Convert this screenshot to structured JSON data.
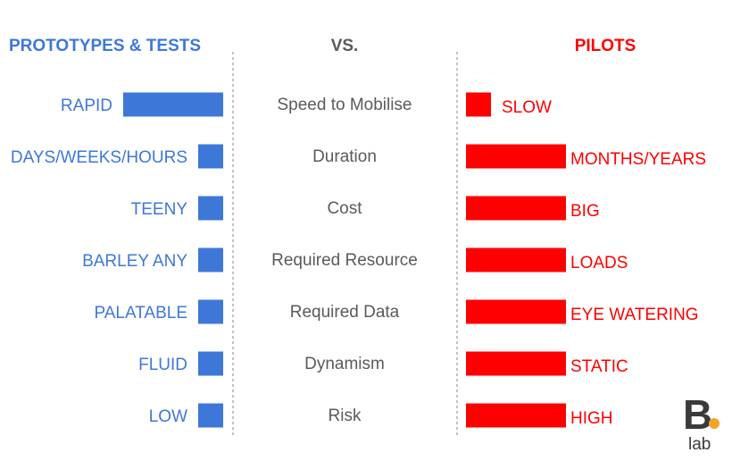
{
  "colors": {
    "left": "#3d78d8",
    "right": "#ff0000",
    "middle_text": "#5a5a5a",
    "divider": "#9a9a9a",
    "logo_b": "#3a3a3a",
    "logo_dot": "#f4a228"
  },
  "headers": {
    "left": "PROTOTYPES & TESTS",
    "middle": "VS.",
    "right": "PILOTS"
  },
  "chart_data": {
    "type": "bar",
    "categories": [
      "Speed to Mobilise",
      "Duration",
      "Cost",
      "Required Resource",
      "Required Data",
      "Dynamism",
      "Risk"
    ],
    "series": [
      {
        "name": "PROTOTYPES & TESTS",
        "labels": [
          "RAPID",
          "DAYS/WEEKS/HOURS",
          "TEENY",
          "BARLEY ANY",
          "PALATABLE",
          "FLUID",
          "LOW"
        ],
        "values": [
          4,
          1,
          1,
          1,
          1,
          1,
          1
        ]
      },
      {
        "name": "PILOTS",
        "labels": [
          "SLOW",
          "MONTHS/YEARS",
          "BIG",
          "LOADS",
          "EYE WATERING",
          "STATIC",
          "HIGH"
        ],
        "values": [
          1,
          4,
          4,
          4,
          4,
          4,
          4
        ]
      }
    ]
  },
  "logo": {
    "letter": "B",
    "dot": ".",
    "word": "lab"
  }
}
